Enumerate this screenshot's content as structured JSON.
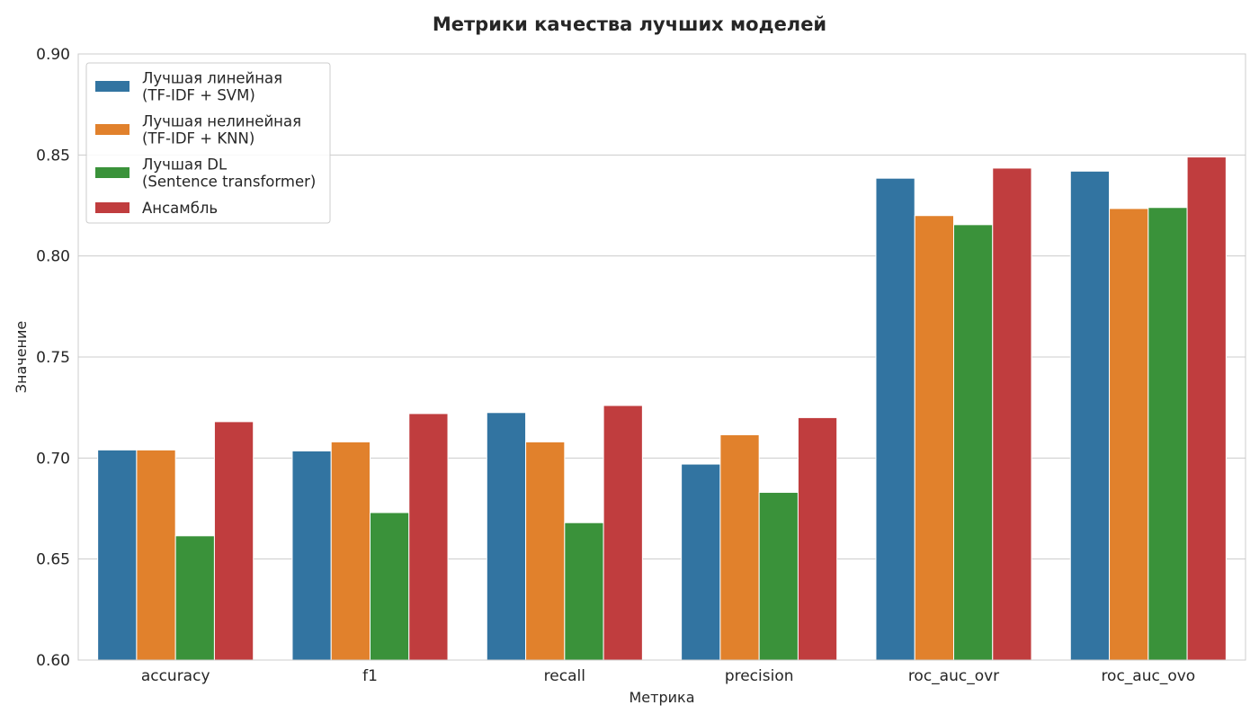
{
  "chart_data": {
    "type": "bar",
    "title": "Метрики качества лучших моделей",
    "xlabel": "Метрика",
    "ylabel": "Значение",
    "ylim": [
      0.6,
      0.9
    ],
    "yticks": [
      "0.60",
      "0.65",
      "0.70",
      "0.75",
      "0.80",
      "0.85",
      "0.90"
    ],
    "grid": true,
    "legend_position": "top-left",
    "categories": [
      "accuracy",
      "f1",
      "recall",
      "precision",
      "roc_auc_ovr",
      "roc_auc_ovo"
    ],
    "series": [
      {
        "name_lines": [
          "Лучшая линейная",
          "(TF-IDF + SVM)"
        ],
        "color": "#3274a1",
        "values": [
          0.704,
          0.7035,
          0.7225,
          0.697,
          0.8385,
          0.842
        ]
      },
      {
        "name_lines": [
          "Лучшая нелинейная",
          "(TF-IDF + KNN)"
        ],
        "color": "#e1812c",
        "values": [
          0.704,
          0.708,
          0.708,
          0.7115,
          0.82,
          0.8235
        ]
      },
      {
        "name_lines": [
          "Лучшая DL",
          "(Sentence transformer)"
        ],
        "color": "#3a923a",
        "values": [
          0.6615,
          0.673,
          0.668,
          0.683,
          0.8155,
          0.824
        ]
      },
      {
        "name_lines": [
          "Ансамбль"
        ],
        "color": "#c03d3e",
        "values": [
          0.718,
          0.722,
          0.726,
          0.72,
          0.8435,
          0.849
        ]
      }
    ]
  }
}
